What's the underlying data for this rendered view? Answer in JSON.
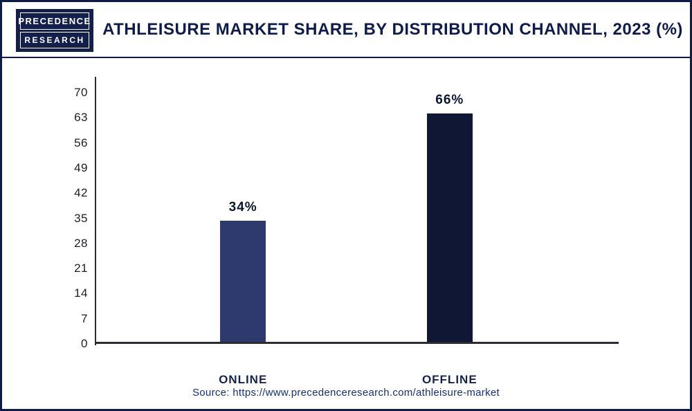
{
  "logo": {
    "line1": "PRECEDENCE",
    "line2": "RESEARCH"
  },
  "header": {
    "title": "ATHLEISURE MARKET SHARE, BY DISTRIBUTION CHANNEL, 2023 (%)"
  },
  "chart_data": {
    "type": "bar",
    "title": "Athleisure Market Share, By Distribution Channel, 2023 (%)",
    "categories": [
      "ONLINE",
      "OFFLINE"
    ],
    "values": [
      34,
      66
    ],
    "value_labels": [
      "34%",
      "66%"
    ],
    "xlabel": "",
    "ylabel": "",
    "ylim": [
      0,
      70
    ],
    "yticks": [
      0,
      7,
      14,
      21,
      28,
      35,
      42,
      49,
      56,
      63,
      70
    ],
    "grid": false,
    "legend": false,
    "bar_colors": [
      "#2e3a6d",
      "#0f1734"
    ]
  },
  "footer": {
    "source": "Source: https://www.precedenceresearch.com/athleisure-market"
  },
  "colors": {
    "border_navy": "#0d1b4c",
    "title_navy": "#0e1b4d",
    "online_bar": "#2e3a6d",
    "offline_bar": "#0f1734",
    "source_blue": "#153077",
    "axis": "#2a2c33"
  }
}
